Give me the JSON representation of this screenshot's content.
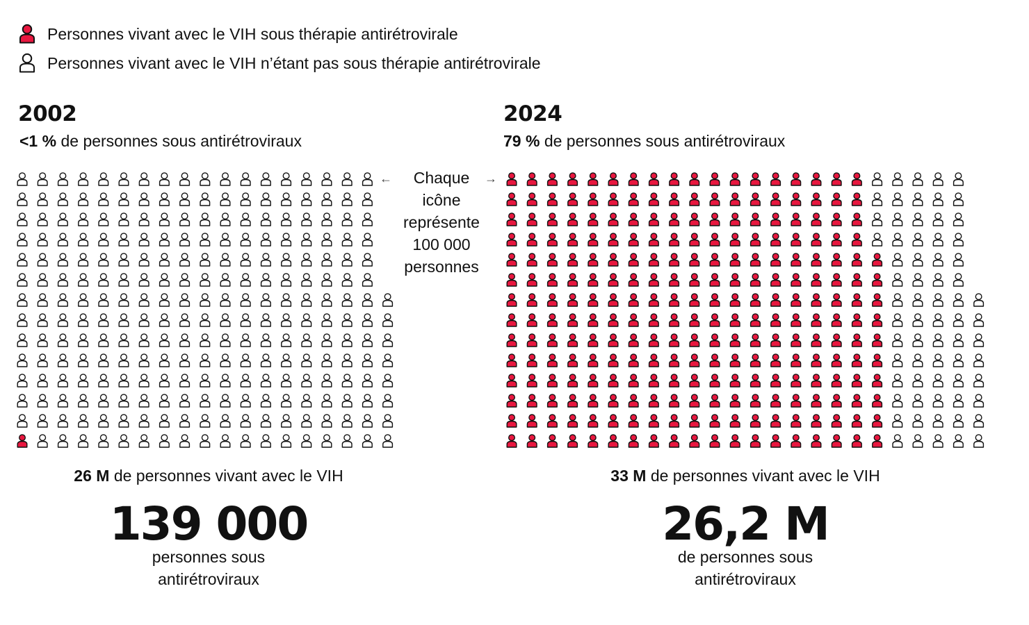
{
  "legend": {
    "on_therapy": "Personnes vivant avec le VIH sous thérapie antirétrovirale",
    "not_on_therapy": "Personnes vivant avec le VIH n’étant pas sous thérapie antirétrovirale"
  },
  "colors": {
    "on_therapy": "#e8173f",
    "not_on_therapy": "#ffffff",
    "outline": "#111111"
  },
  "icon_names": {
    "person": "person-icon"
  },
  "note": [
    "Chaque",
    "icône",
    "représente",
    "100 000",
    "personnes"
  ],
  "note_arrow_left": "←",
  "note_arrow_right": "→",
  "panels": [
    {
      "year": "2002",
      "pct_bold": "<1 %",
      "pct_rest": " de personnes sous antirétroviraux",
      "total_bold": "26 M",
      "total_rest": " de personnes vivant avec le VIH",
      "big_number": "139 000",
      "caption": [
        "personnes sous",
        "antirétroviraux"
      ]
    },
    {
      "year": "2024",
      "pct_bold": "79 %",
      "pct_rest": " de personnes sous antirétroviraux",
      "total_bold": "33 M",
      "total_rest": " de personnes vivant avec le VIH",
      "big_number": "26,2 M",
      "caption": [
        "de personnes sous",
        "antirétroviraux"
      ]
    }
  ],
  "chart_data": [
    {
      "type": "waffle",
      "year": "2002",
      "unit_per_icon": 100000,
      "total_icons": 260,
      "on_therapy_icons": 1,
      "total_people": "26 M",
      "on_therapy_people": "139 000",
      "percent_on_therapy": "<1 %"
    },
    {
      "type": "waffle",
      "year": "2024",
      "unit_per_icon": 100000,
      "total_icons": 330,
      "on_therapy_icons": 262,
      "total_people": "33 M",
      "on_therapy_people": "26,2 M",
      "percent_on_therapy": "79 %"
    }
  ]
}
